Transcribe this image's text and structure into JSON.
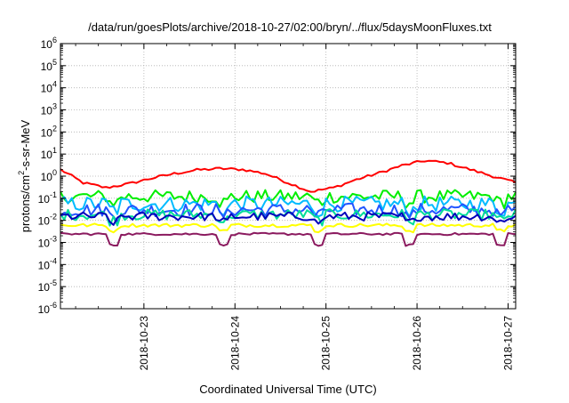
{
  "chart_data": {
    "type": "line",
    "title": "/data/run/goesPlots/archive/2018-10-27/02:00/bryn/../flux/5daysMoonFluxes.txt",
    "xlabel": "Coordinated Universal Time (UTC)",
    "ylabel": {
      "base": "protons/cm",
      "exp": "2",
      "rest": "-s-sr-MeV"
    },
    "yscale": "log",
    "ylim_exponent": [
      -6,
      6
    ],
    "ytick_labels": [
      {
        "base": "10",
        "exp": "-6",
        "value_exp": -6
      },
      {
        "base": "10",
        "exp": "-5",
        "value_exp": -5
      },
      {
        "base": "10",
        "exp": "-4",
        "value_exp": -4
      },
      {
        "base": "10",
        "exp": "-3",
        "value_exp": -3
      },
      {
        "base": "10",
        "exp": "-2",
        "value_exp": -2
      },
      {
        "base": "10",
        "exp": "-1",
        "value_exp": -1
      },
      {
        "base": "10",
        "exp": "0",
        "value_exp": 0
      },
      {
        "base": "10",
        "exp": "1",
        "value_exp": 1
      },
      {
        "base": "10",
        "exp": "2",
        "value_exp": 2
      },
      {
        "base": "10",
        "exp": "3",
        "value_exp": 3
      },
      {
        "base": "10",
        "exp": "4",
        "value_exp": 4
      },
      {
        "base": "10",
        "exp": "5",
        "value_exp": 5
      },
      {
        "base": "10",
        "exp": "6",
        "value_exp": 6
      }
    ],
    "xlim": [
      "2018-10-22 02:00",
      "2018-10-27 02:00"
    ],
    "xtick_labels": [
      "2018-10-23",
      "2018-10-24",
      "2018-10-25",
      "2018-10-26",
      "2018-10-27"
    ],
    "grid": true,
    "legend": "none",
    "series": [
      {
        "color": "#ff0000",
        "sample_step_hours": 6,
        "values": [
          2.0,
          0.5,
          0.3,
          0.45,
          0.8,
          1.3,
          1.9,
          2.2,
          2.0,
          1.3,
          0.5,
          0.2,
          0.3,
          0.7,
          1.4,
          3.0,
          5.0,
          4.0,
          2.0,
          1.0,
          0.5,
          0.2,
          0.35,
          0.9,
          2.0,
          3.5,
          3.0,
          1.6,
          0.7,
          0.3,
          0.2,
          0.4,
          0.8,
          1.6,
          2.5,
          2.7,
          2.0,
          0.8,
          0.3,
          0.4,
          1.0,
          2.0,
          3.2,
          4.2,
          4.0,
          3.0,
          1.5,
          1.0,
          0.9
        ],
        "x_start_hours": 0
      },
      {
        "color": "#00ee00",
        "baseline": 0.12,
        "spread": 0.3
      },
      {
        "color": "#00bbff",
        "baseline": 0.055,
        "spread": 0.35
      },
      {
        "color": "#2255ff",
        "baseline": 0.03,
        "spread": 0.3
      },
      {
        "color": "#00dd99",
        "baseline": 0.018,
        "spread": 0.25
      },
      {
        "color": "#0000bb",
        "baseline": 0.015,
        "spread": 0.2
      },
      {
        "color": "#ffff00",
        "baseline": 0.006,
        "spread": 0.08
      },
      {
        "color": "#8b1a5f",
        "baseline": 0.0024,
        "spread": 0.05
      }
    ],
    "colors": {
      "grid": "#b0b0b0",
      "frame": "#000000"
    }
  }
}
